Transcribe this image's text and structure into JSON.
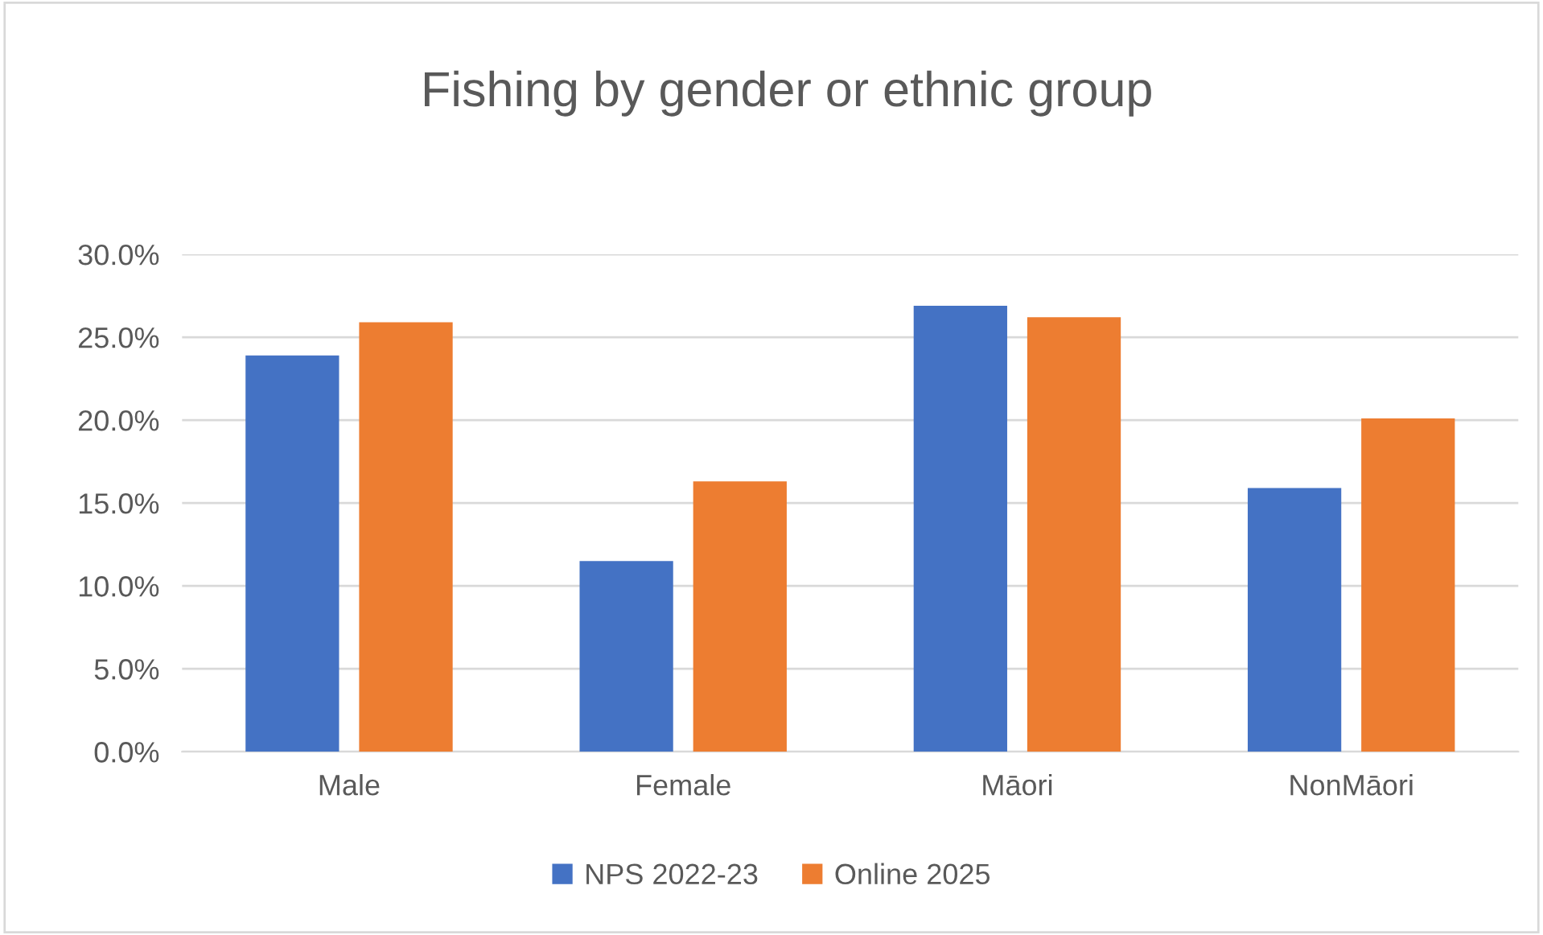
{
  "chart_data": {
    "type": "bar",
    "title": "Fishing by gender or ethnic group",
    "categories": [
      "Male",
      "Female",
      "Māori",
      "NonMāori"
    ],
    "series": [
      {
        "name": "NPS 2022-23",
        "color": "#4472c4",
        "values": [
          23.9,
          11.5,
          26.9,
          15.9
        ]
      },
      {
        "name": "Online 2025",
        "color": "#ed7d31",
        "values": [
          25.9,
          16.3,
          26.2,
          20.1
        ]
      }
    ],
    "ylim": [
      0,
      30
    ],
    "yticks": [
      {
        "value": 0,
        "label": "0.0%"
      },
      {
        "value": 5,
        "label": "5.0%"
      },
      {
        "value": 10,
        "label": "10.0%"
      },
      {
        "value": 15,
        "label": "15.0%"
      },
      {
        "value": 20,
        "label": "20.0%"
      },
      {
        "value": 25,
        "label": "25.0%"
      },
      {
        "value": 30,
        "label": "30.0%"
      }
    ],
    "grid": "y",
    "legend": "bottom"
  }
}
